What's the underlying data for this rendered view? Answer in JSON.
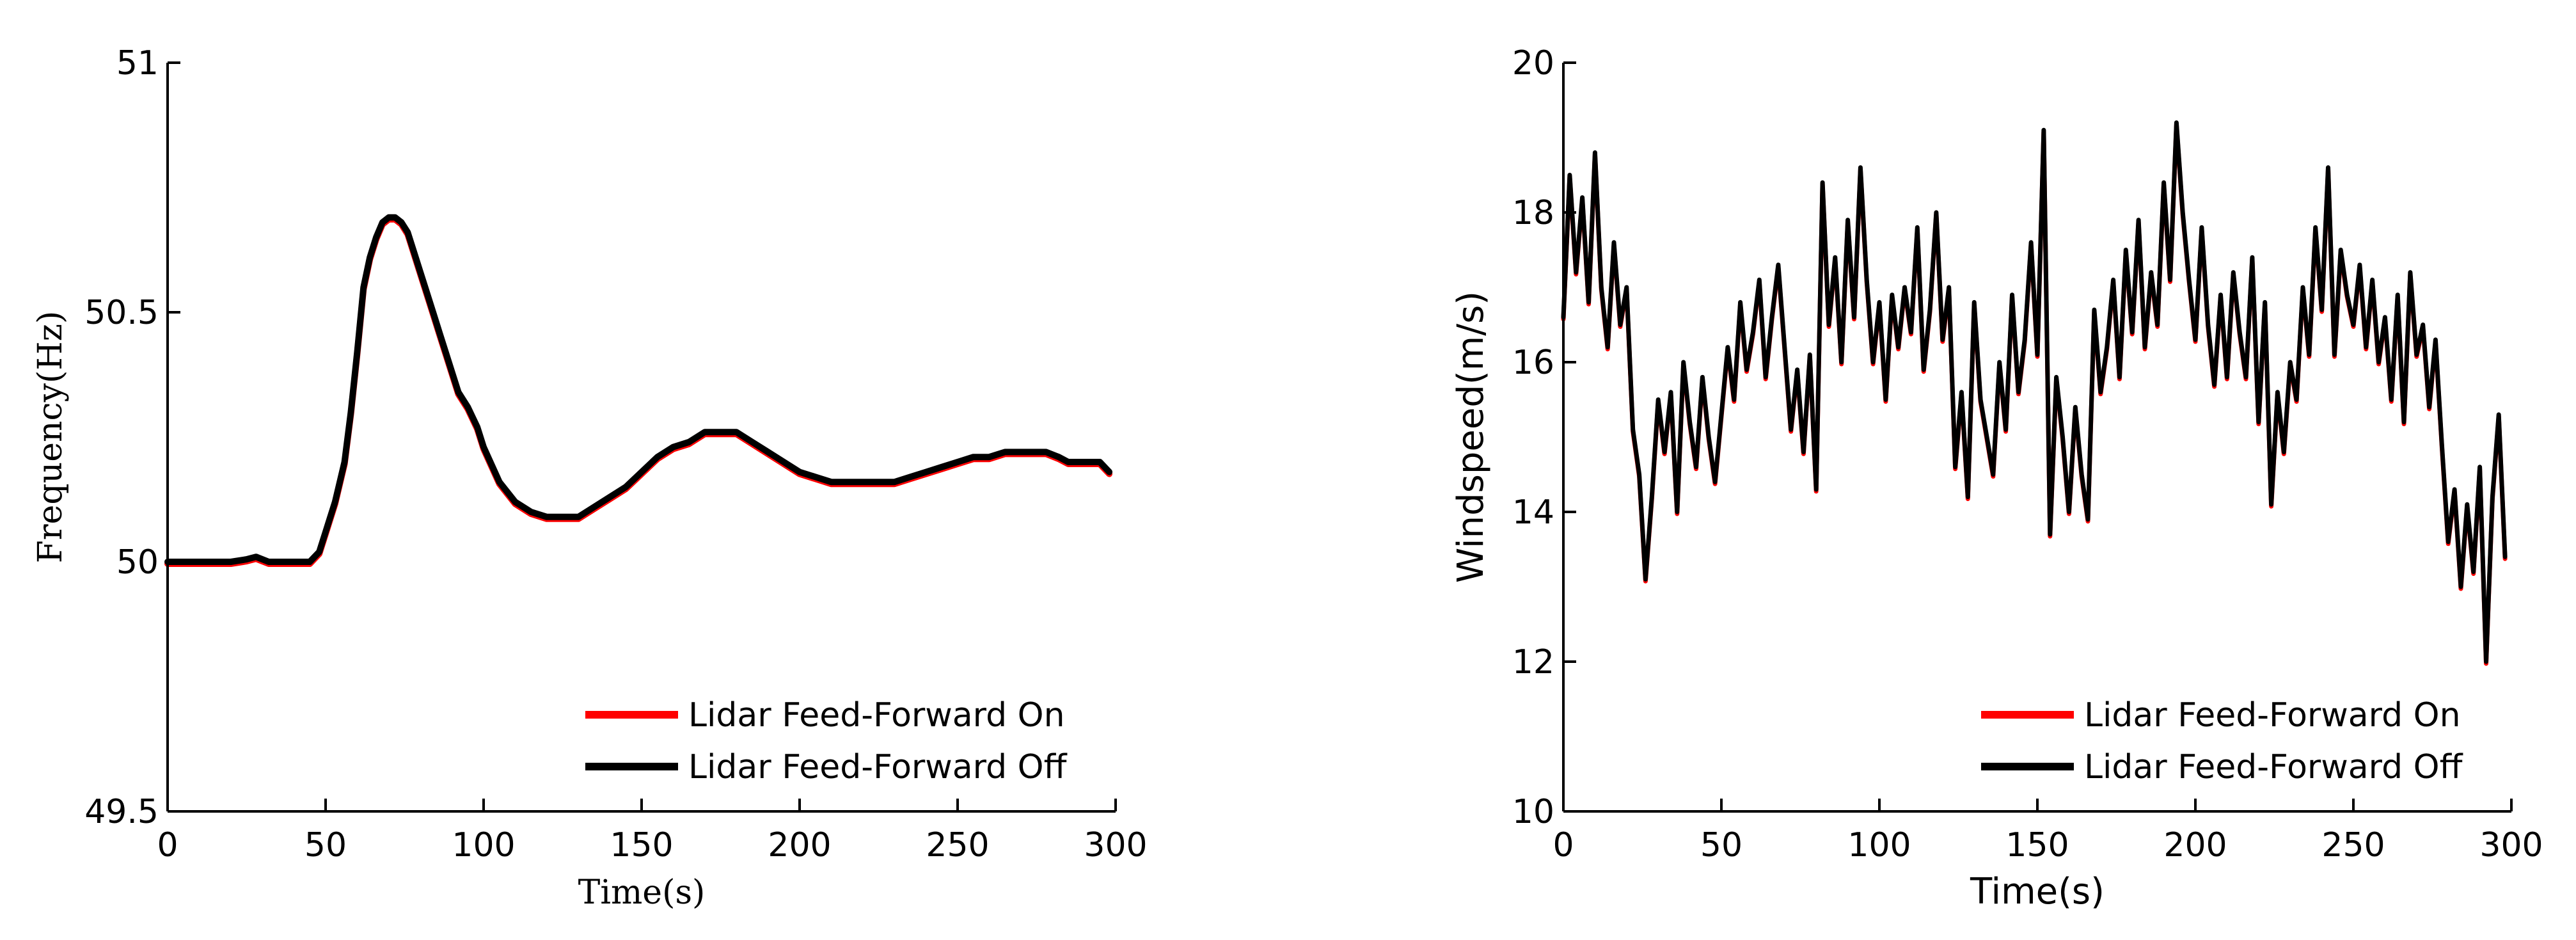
{
  "chart_data": [
    {
      "type": "line",
      "title": "",
      "xlabel": "Time(s)",
      "ylabel": "Frequency(Hz)",
      "xlim": [
        0,
        300
      ],
      "ylim": [
        49.5,
        51
      ],
      "xticks": [
        "0",
        "50",
        "100",
        "150",
        "200",
        "250",
        "300"
      ],
      "yticks": [
        "49.5",
        "50",
        "50.5",
        "51"
      ],
      "grid": false,
      "legend": "bottom-right",
      "series": [
        {
          "name": "Lidar Feed-Forward On",
          "color": "#ff0000",
          "x": [
            0,
            20,
            25,
            28,
            32,
            45,
            48,
            50,
            53,
            56,
            58,
            60,
            62,
            64,
            66,
            68,
            70,
            72,
            74,
            76,
            78,
            80,
            82,
            84,
            86,
            88,
            90,
            92,
            95,
            98,
            100,
            105,
            110,
            115,
            120,
            125,
            130,
            135,
            140,
            145,
            150,
            155,
            160,
            165,
            170,
            175,
            180,
            185,
            190,
            195,
            200,
            205,
            210,
            215,
            220,
            225,
            230,
            235,
            240,
            245,
            250,
            255,
            260,
            265,
            270,
            275,
            278,
            282,
            285,
            290,
            295,
            298
          ],
          "y": [
            50.0,
            50.0,
            50.005,
            50.01,
            50.0,
            50.0,
            50.02,
            50.06,
            50.12,
            50.2,
            50.3,
            50.42,
            50.55,
            50.61,
            50.65,
            50.68,
            50.69,
            50.69,
            50.68,
            50.66,
            50.62,
            50.58,
            50.54,
            50.5,
            50.46,
            50.42,
            50.38,
            50.34,
            50.31,
            50.27,
            50.23,
            50.16,
            50.12,
            50.1,
            50.09,
            50.09,
            50.09,
            50.11,
            50.13,
            50.15,
            50.18,
            50.21,
            50.23,
            50.24,
            50.26,
            50.26,
            50.26,
            50.24,
            50.22,
            50.2,
            50.18,
            50.17,
            50.16,
            50.16,
            50.16,
            50.16,
            50.16,
            50.17,
            50.18,
            50.19,
            50.2,
            50.21,
            50.21,
            50.22,
            50.22,
            50.22,
            50.22,
            50.21,
            50.2,
            50.2,
            50.2,
            50.18
          ]
        },
        {
          "name": "Lidar Feed-Forward Off",
          "color": "#000000",
          "x": [
            0,
            20,
            25,
            28,
            32,
            45,
            48,
            50,
            53,
            56,
            58,
            60,
            62,
            64,
            66,
            68,
            70,
            72,
            74,
            76,
            78,
            80,
            82,
            84,
            86,
            88,
            90,
            92,
            95,
            98,
            100,
            105,
            110,
            115,
            120,
            125,
            130,
            135,
            140,
            145,
            150,
            155,
            160,
            165,
            170,
            175,
            180,
            185,
            190,
            195,
            200,
            205,
            210,
            215,
            220,
            225,
            230,
            235,
            240,
            245,
            250,
            255,
            260,
            265,
            270,
            275,
            278,
            282,
            285,
            290,
            295,
            298
          ],
          "y": [
            50.0,
            50.0,
            50.005,
            50.01,
            50.0,
            50.0,
            50.02,
            50.06,
            50.12,
            50.2,
            50.3,
            50.42,
            50.55,
            50.61,
            50.65,
            50.68,
            50.69,
            50.69,
            50.68,
            50.66,
            50.62,
            50.58,
            50.54,
            50.5,
            50.46,
            50.42,
            50.38,
            50.34,
            50.31,
            50.27,
            50.23,
            50.16,
            50.12,
            50.1,
            50.09,
            50.09,
            50.09,
            50.11,
            50.13,
            50.15,
            50.18,
            50.21,
            50.23,
            50.24,
            50.26,
            50.26,
            50.26,
            50.24,
            50.22,
            50.2,
            50.18,
            50.17,
            50.16,
            50.16,
            50.16,
            50.16,
            50.16,
            50.17,
            50.18,
            50.19,
            50.2,
            50.21,
            50.21,
            50.22,
            50.22,
            50.22,
            50.22,
            50.21,
            50.2,
            50.2,
            50.2,
            50.18
          ]
        }
      ]
    },
    {
      "type": "line",
      "title": "",
      "xlabel": "Time(s)",
      "ylabel": "Windspeed(m/s)",
      "xlim": [
        0,
        300
      ],
      "ylim": [
        10,
        20
      ],
      "xticks": [
        "0",
        "50",
        "100",
        "150",
        "200",
        "250",
        "300"
      ],
      "yticks": [
        "10",
        "12",
        "14",
        "16",
        "18",
        "20"
      ],
      "grid": false,
      "legend": "bottom-right",
      "series": [
        {
          "name": "Lidar Feed-Forward On",
          "color": "#ff0000",
          "x": [
            0,
            2,
            4,
            6,
            8,
            10,
            12,
            14,
            16,
            18,
            20,
            22,
            24,
            26,
            28,
            30,
            32,
            34,
            36,
            38,
            40,
            42,
            44,
            46,
            48,
            50,
            52,
            54,
            56,
            58,
            60,
            62,
            64,
            66,
            68,
            70,
            72,
            74,
            76,
            78,
            80,
            82,
            84,
            86,
            88,
            90,
            92,
            94,
            96,
            98,
            100,
            102,
            104,
            106,
            108,
            110,
            112,
            114,
            116,
            118,
            120,
            122,
            124,
            126,
            128,
            130,
            132,
            134,
            136,
            138,
            140,
            142,
            144,
            146,
            148,
            150,
            152,
            154,
            156,
            158,
            160,
            162,
            164,
            166,
            168,
            170,
            172,
            174,
            176,
            178,
            180,
            182,
            184,
            186,
            188,
            190,
            192,
            194,
            196,
            198,
            200,
            202,
            204,
            206,
            208,
            210,
            212,
            214,
            216,
            218,
            220,
            222,
            224,
            226,
            228,
            230,
            232,
            234,
            236,
            238,
            240,
            242,
            244,
            246,
            248,
            250,
            252,
            254,
            256,
            258,
            260,
            262,
            264,
            266,
            268,
            270,
            272,
            274,
            276,
            278,
            280,
            282,
            284,
            286,
            288,
            290,
            292,
            294,
            296,
            298
          ],
          "y": [
            16.6,
            18.5,
            17.2,
            18.2,
            16.8,
            18.8,
            17.0,
            16.2,
            17.6,
            16.5,
            17.0,
            15.1,
            14.5,
            13.1,
            14.2,
            15.5,
            14.8,
            15.6,
            14.0,
            16.0,
            15.2,
            14.6,
            15.8,
            15.0,
            14.4,
            15.3,
            16.2,
            15.5,
            16.8,
            15.9,
            16.4,
            17.1,
            15.8,
            16.6,
            17.3,
            16.2,
            15.1,
            15.9,
            14.8,
            16.1,
            14.3,
            18.4,
            16.5,
            17.4,
            16.0,
            17.9,
            16.6,
            18.6,
            17.1,
            16.0,
            16.8,
            15.5,
            16.9,
            16.2,
            17.0,
            16.4,
            17.8,
            15.9,
            16.7,
            18.0,
            16.3,
            17.0,
            14.6,
            15.6,
            14.2,
            16.8,
            15.5,
            15.0,
            14.5,
            16.0,
            15.1,
            16.9,
            15.6,
            16.3,
            17.6,
            16.1,
            19.1,
            13.7,
            15.8,
            15.0,
            14.0,
            15.4,
            14.5,
            13.9,
            16.7,
            15.6,
            16.2,
            17.1,
            15.8,
            17.5,
            16.4,
            17.9,
            16.2,
            17.2,
            16.5,
            18.4,
            17.1,
            19.2,
            18.0,
            17.1,
            16.3,
            17.8,
            16.5,
            15.7,
            16.9,
            15.8,
            17.2,
            16.4,
            15.8,
            17.4,
            15.2,
            16.8,
            14.1,
            15.6,
            14.8,
            16.0,
            15.5,
            17.0,
            16.1,
            17.8,
            16.7,
            18.6,
            16.1,
            17.5,
            16.9,
            16.5,
            17.3,
            16.2,
            17.1,
            16.0,
            16.6,
            15.5,
            16.9,
            15.2,
            17.2,
            16.1,
            16.5,
            15.4,
            16.3,
            14.9,
            13.6,
            14.3,
            13.0,
            14.1,
            13.2,
            14.6,
            12.0,
            14.2,
            15.3,
            13.4
          ]
        },
        {
          "name": "Lidar Feed-Forward Off",
          "color": "#000000",
          "x": [
            0,
            2,
            4,
            6,
            8,
            10,
            12,
            14,
            16,
            18,
            20,
            22,
            24,
            26,
            28,
            30,
            32,
            34,
            36,
            38,
            40,
            42,
            44,
            46,
            48,
            50,
            52,
            54,
            56,
            58,
            60,
            62,
            64,
            66,
            68,
            70,
            72,
            74,
            76,
            78,
            80,
            82,
            84,
            86,
            88,
            90,
            92,
            94,
            96,
            98,
            100,
            102,
            104,
            106,
            108,
            110,
            112,
            114,
            116,
            118,
            120,
            122,
            124,
            126,
            128,
            130,
            132,
            134,
            136,
            138,
            140,
            142,
            144,
            146,
            148,
            150,
            152,
            154,
            156,
            158,
            160,
            162,
            164,
            166,
            168,
            170,
            172,
            174,
            176,
            178,
            180,
            182,
            184,
            186,
            188,
            190,
            192,
            194,
            196,
            198,
            200,
            202,
            204,
            206,
            208,
            210,
            212,
            214,
            216,
            218,
            220,
            222,
            224,
            226,
            228,
            230,
            232,
            234,
            236,
            238,
            240,
            242,
            244,
            246,
            248,
            250,
            252,
            254,
            256,
            258,
            260,
            262,
            264,
            266,
            268,
            270,
            272,
            274,
            276,
            278,
            280,
            282,
            284,
            286,
            288,
            290,
            292,
            294,
            296,
            298
          ],
          "y": [
            16.6,
            18.5,
            17.2,
            18.2,
            16.8,
            18.8,
            17.0,
            16.2,
            17.6,
            16.5,
            17.0,
            15.1,
            14.5,
            13.1,
            14.2,
            15.5,
            14.8,
            15.6,
            14.0,
            16.0,
            15.2,
            14.6,
            15.8,
            15.0,
            14.4,
            15.3,
            16.2,
            15.5,
            16.8,
            15.9,
            16.4,
            17.1,
            15.8,
            16.6,
            17.3,
            16.2,
            15.1,
            15.9,
            14.8,
            16.1,
            14.3,
            18.4,
            16.5,
            17.4,
            16.0,
            17.9,
            16.6,
            18.6,
            17.1,
            16.0,
            16.8,
            15.5,
            16.9,
            16.2,
            17.0,
            16.4,
            17.8,
            15.9,
            16.7,
            18.0,
            16.3,
            17.0,
            14.6,
            15.6,
            14.2,
            16.8,
            15.5,
            15.0,
            14.5,
            16.0,
            15.1,
            16.9,
            15.6,
            16.3,
            17.6,
            16.1,
            19.1,
            13.7,
            15.8,
            15.0,
            14.0,
            15.4,
            14.5,
            13.9,
            16.7,
            15.6,
            16.2,
            17.1,
            15.8,
            17.5,
            16.4,
            17.9,
            16.2,
            17.2,
            16.5,
            18.4,
            17.1,
            19.2,
            18.0,
            17.1,
            16.3,
            17.8,
            16.5,
            15.7,
            16.9,
            15.8,
            17.2,
            16.4,
            15.8,
            17.4,
            15.2,
            16.8,
            14.1,
            15.6,
            14.8,
            16.0,
            15.5,
            17.0,
            16.1,
            17.8,
            16.7,
            18.6,
            16.1,
            17.5,
            16.9,
            16.5,
            17.3,
            16.2,
            17.1,
            16.0,
            16.6,
            15.5,
            16.9,
            15.2,
            17.2,
            16.1,
            16.5,
            15.4,
            16.3,
            14.9,
            13.6,
            14.3,
            13.0,
            14.1,
            13.2,
            14.6,
            12.0,
            14.2,
            15.3,
            13.4
          ]
        }
      ]
    }
  ]
}
